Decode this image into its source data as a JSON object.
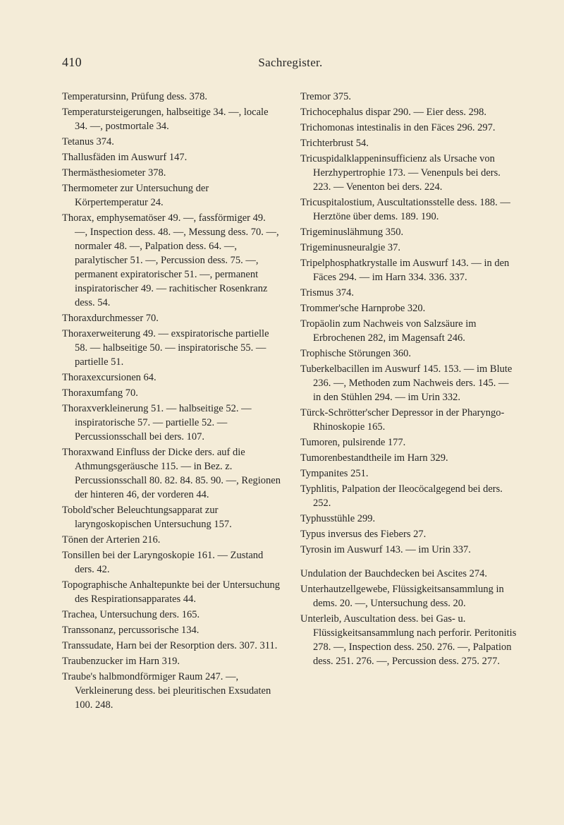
{
  "header": {
    "page_number": "410",
    "running_title": "Sachregister."
  },
  "left_column": [
    "Temperatursinn, Prüfung dess. 378.",
    "Temperatursteigerungen, halbseitige 34. —, locale 34. —, postmortale 34.",
    "Tetanus 374.",
    "Thallusfäden im Auswurf 147.",
    "Thermästhesiometer 378.",
    "Thermometer zur Untersuchung der Körpertemperatur 24.",
    "Thorax, emphysematöser 49. —, fassförmiger 49. —, Inspection dess. 48. —, Messung dess. 70. —, normaler 48. —, Palpation dess. 64. —, paralytischer 51. —, Percussion dess. 75. —, permanent expiratorischer 51. —, permanent inspiratorischer 49. — rachitischer Rosenkranz dess. 54.",
    "Thoraxdurchmesser 70.",
    "Thoraxerweiterung 49. — exspiratorische partielle 58. — halbseitige 50. — inspiratorische 55. — partielle 51.",
    "Thoraxexcursionen 64.",
    "Thoraxumfang 70.",
    "Thoraxverkleinerung 51. — halbseitige 52. — inspiratorische 57. — partielle 52. — Percussionsschall bei ders. 107.",
    "Thoraxwand Einfluss der Dicke ders. auf die Athmungsgeräusche 115. — in Bez. z. Percussionsschall 80. 82. 84. 85. 90. —, Regionen der hinteren 46, der vorderen 44.",
    "Tobold'scher Beleuchtungsapparat zur laryngoskopischen Untersuchung 157.",
    "Tönen der Arterien 216.",
    "Tonsillen bei der Laryngoskopie 161. — Zustand ders. 42.",
    "Topographische Anhaltepunkte bei der Untersuchung des Respirationsapparates 44.",
    "Trachea, Untersuchung ders. 165.",
    "Transsonanz, percussorische 134.",
    "Transsudate, Harn bei der Resorption ders. 307. 311.",
    "Traubenzucker im Harn 319.",
    "Traube's halbmondförmiger Raum 247. —, Verkleinerung dess. bei pleuritischen Exsudaten 100. 248."
  ],
  "right_column_a": [
    "Tremor 375.",
    "Trichocephalus dispar 290. — Eier dess. 298.",
    "Trichomonas intestinalis in den Fäces 296. 297.",
    "Trichterbrust 54.",
    "Tricuspidalklappeninsufficienz als Ursache von Herzhypertrophie 173. — Venenpuls bei ders. 223. — Venenton bei ders. 224.",
    "Tricuspitalostium, Auscultationsstelle dess. 188. — Herztöne über dems. 189. 190.",
    "Trigeminuslähmung 350.",
    "Trigeminusneuralgie 37.",
    "Tripelphosphatkrystalle im Auswurf 143. — in den Fäces 294. — im Harn 334. 336. 337.",
    "Trismus 374.",
    "Trommer'sche Harnprobe 320.",
    "Tropäolin zum Nachweis von Salzsäure im Erbrochenen 282, im Magensaft 246.",
    "Trophische Störungen 360.",
    "Tuberkelbacillen im Auswurf 145. 153. — im Blute 236. —, Methoden zum Nachweis ders. 145. — in den Stühlen 294. — im Urin 332.",
    "Türck-Schrötter'scher Depressor in der Pharyngo-Rhinoskopie 165.",
    "Tumoren, pulsirende 177.",
    "Tumorenbestandtheile im Harn 329.",
    "Tympanites 251.",
    "Typhlitis, Palpation der Ileocöcalgegend bei ders. 252.",
    "Typhusstühle 299.",
    "Typus inversus des Fiebers 27.",
    "Tyrosin im Auswurf 143. — im Urin 337."
  ],
  "right_column_b": [
    "Undulation der Bauchdecken bei Ascites 274.",
    "Unterhautzellgewebe, Flüssigkeitsansammlung in dems. 20. —, Untersuchung dess. 20.",
    "Unterleib, Auscultation dess. bei Gas- u. Flüssigkeitsansammlung nach perforir. Peritonitis 278. —, Inspection dess. 250. 276. —, Palpation dess. 251. 276. —, Percussion dess. 275. 277."
  ]
}
